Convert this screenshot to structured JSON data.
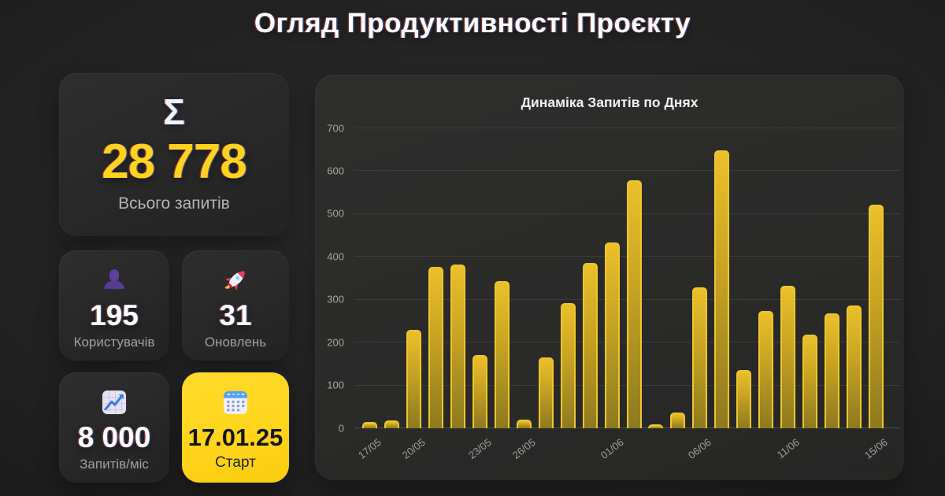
{
  "page": {
    "title": "Огляд Продуктивності Проєкту"
  },
  "cards": {
    "total": {
      "icon": "sigma-icon",
      "sigma_glyph": "Σ",
      "value": "28 778",
      "label": "Всього запитів"
    },
    "users": {
      "icon": "user-silhouette-icon",
      "value": "195",
      "label": "Користувачів"
    },
    "updates": {
      "icon": "rocket-icon",
      "value": "31",
      "label": "Оновлень"
    },
    "monthly": {
      "icon": "chart-increasing-icon",
      "value": "8 000",
      "label": "Запитів/міс"
    },
    "start": {
      "icon": "calendar-icon",
      "value": "17.01.25",
      "label": "Старт"
    }
  },
  "colors": {
    "accent_yellow": "#FFD21E",
    "bar_border": "#EDC72E",
    "bar_fill_top": "#EAC02A",
    "bar_fill_bottom": "#8D791F",
    "card_background": "#2B2B2B",
    "page_background": "#1F1F1F",
    "text_primary": "#FFFFFF",
    "text_muted": "#A5A19A",
    "user_icon_purple": "#573A92",
    "rocket_pink": "#EE3B62",
    "calendar_blue": "#53A0F1"
  },
  "chart_data": {
    "type": "bar",
    "title": "Динаміка Запитів по Днях",
    "xlabel": "",
    "ylabel": "",
    "ylim": [
      0,
      700
    ],
    "y_ticks": [
      0,
      100,
      200,
      300,
      400,
      500,
      600,
      700
    ],
    "grid": "horizontal",
    "legend": "none",
    "bar_color": "#EAC02A",
    "values": [
      15,
      18,
      230,
      377,
      382,
      171,
      343,
      20,
      165,
      293,
      386,
      434,
      578,
      10,
      36,
      328,
      649,
      136,
      273,
      332,
      219,
      269,
      286,
      521
    ],
    "x_tick_labels": [
      {
        "index": 0,
        "label": "17/05"
      },
      {
        "index": 2,
        "label": "20/05"
      },
      {
        "index": 5,
        "label": "23/05"
      },
      {
        "index": 7,
        "label": "26/05"
      },
      {
        "index": 11,
        "label": "01/06"
      },
      {
        "index": 15,
        "label": "06/06"
      },
      {
        "index": 19,
        "label": "11/06"
      },
      {
        "index": 23,
        "label": "15/06"
      }
    ]
  }
}
